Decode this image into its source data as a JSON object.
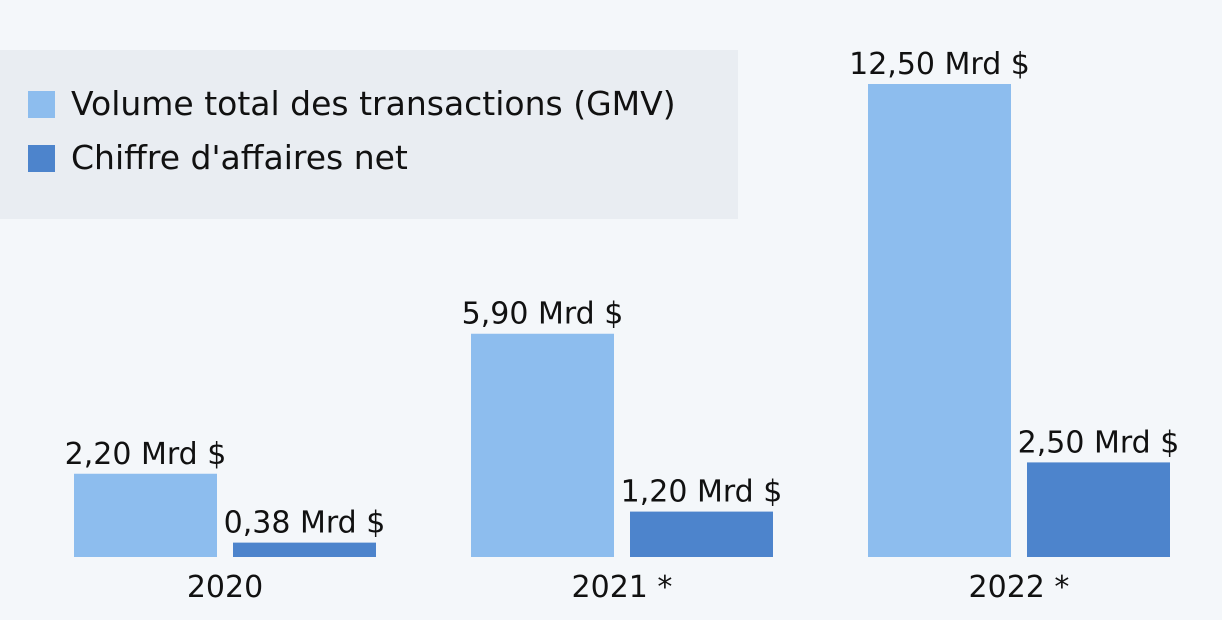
{
  "chart_data": {
    "type": "bar",
    "categories": [
      "2020",
      "2021 *",
      "2022 *"
    ],
    "series": [
      {
        "name": "Volume total des transactions (GMV)",
        "values": [
          2.2,
          5.9,
          12.5
        ],
        "labels": [
          "2,20 Mrd $",
          "5,90 Mrd $",
          "12,50 Mrd $"
        ],
        "color": "#8dbdee"
      },
      {
        "name": "Chiffre d'affaires net",
        "values": [
          0.38,
          1.2,
          2.5
        ],
        "labels": [
          "0,38 Mrd $",
          "1,20 Mrd $",
          "2,50 Mrd $"
        ],
        "color": "#4d84cc"
      }
    ],
    "ylim": [
      0,
      12.5
    ],
    "grid": false,
    "legend_position": "top-left"
  }
}
